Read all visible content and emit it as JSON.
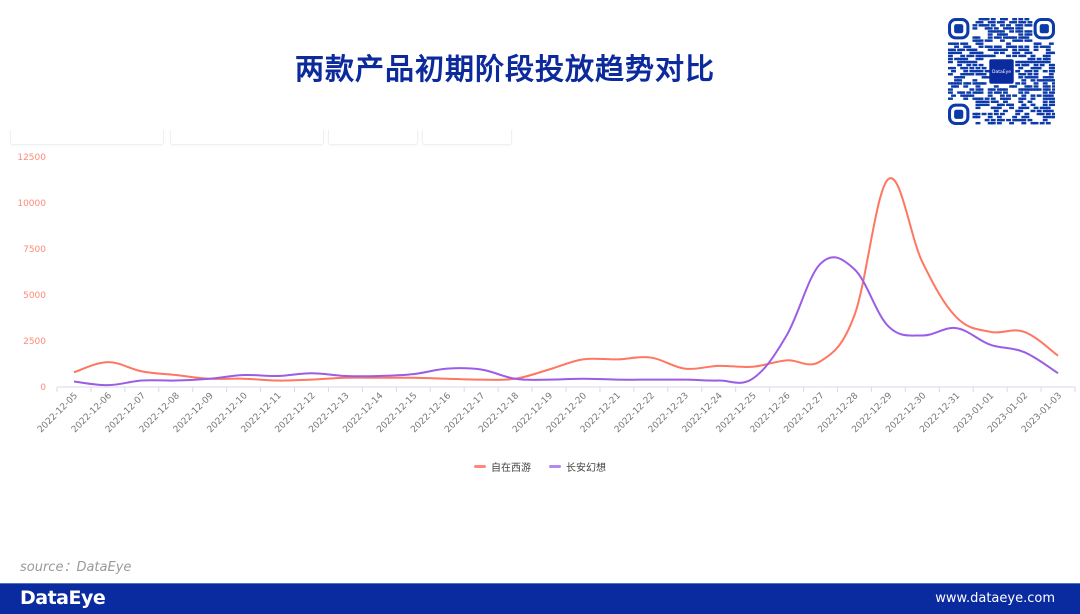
{
  "title": "两款产品初期阶段投放趋势对比",
  "qr_center_label": "DataEye",
  "source": "source：DataEye",
  "footer": {
    "logo": "DataEye",
    "url": "www.dataeye.com"
  },
  "colors": {
    "brand": "#0a2aa0",
    "series1": "#ff7661",
    "series2": "#9b5de5",
    "ytick": "#ff8a78"
  },
  "chart_data": {
    "type": "line",
    "title": "两款产品初期阶段投放趋势对比",
    "xlabel": "",
    "ylabel": "",
    "ylim": [
      0,
      12500
    ],
    "yticks": [
      0,
      2500,
      5000,
      7500,
      10000,
      12500
    ],
    "legend_position": "bottom",
    "grid": false,
    "categories": [
      "2022-12-05",
      "2022-12-06",
      "2022-12-07",
      "2022-12-08",
      "2022-12-09",
      "2022-12-10",
      "2022-12-11",
      "2022-12-12",
      "2022-12-13",
      "2022-12-14",
      "2022-12-15",
      "2022-12-16",
      "2022-12-17",
      "2022-12-18",
      "2022-12-19",
      "2022-12-20",
      "2022-12-21",
      "2022-12-22",
      "2022-12-23",
      "2022-12-24",
      "2022-12-25",
      "2022-12-26",
      "2022-12-27",
      "2022-12-28",
      "2022-12-29",
      "2022-12-30",
      "2022-12-31",
      "2023-01-01",
      "2023-01-02",
      "2023-01-03"
    ],
    "series": [
      {
        "name": "自在西游",
        "color": "#ff7661",
        "values": [
          800,
          1350,
          850,
          650,
          450,
          450,
          350,
          400,
          500,
          500,
          500,
          450,
          400,
          450,
          950,
          1500,
          1500,
          1600,
          1000,
          1150,
          1100,
          1450,
          1400,
          3900,
          11300,
          6800,
          3800,
          3000,
          3000,
          1700
        ]
      },
      {
        "name": "长安幻想",
        "color": "#9b5de5",
        "values": [
          300,
          100,
          350,
          350,
          450,
          650,
          600,
          750,
          600,
          600,
          700,
          1000,
          950,
          450,
          400,
          450,
          400,
          400,
          400,
          350,
          450,
          2800,
          6700,
          6400,
          3300,
          2800,
          3200,
          2300,
          1900,
          750
        ]
      }
    ]
  }
}
